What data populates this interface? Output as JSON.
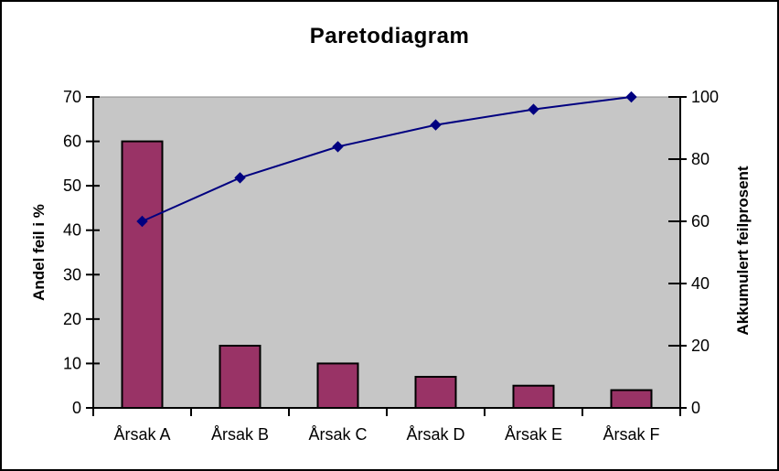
{
  "chart_data": {
    "type": "bar",
    "subtype": "pareto-combo",
    "title": "Paretodiagram",
    "categories": [
      "Årsak A",
      "Årsak B",
      "Årsak C",
      "Årsak D",
      "Årsak E",
      "Årsak F"
    ],
    "series": [
      {
        "name": "Andel feil i %",
        "render": "bar",
        "axis": "left",
        "values": [
          60,
          14,
          10,
          7,
          5,
          4
        ]
      },
      {
        "name": "Akkumulert feilprosent",
        "render": "line",
        "axis": "right",
        "values": [
          60,
          74,
          84,
          91,
          96,
          100
        ]
      }
    ],
    "left_axis": {
      "label": "Andel feil i %",
      "min": 0,
      "max": 70,
      "ticks": [
        0,
        10,
        20,
        30,
        40,
        50,
        60,
        70
      ]
    },
    "right_axis": {
      "label": "Akkumulert feilprosent",
      "min": 0,
      "max": 100,
      "ticks": [
        0,
        20,
        40,
        60,
        80,
        100
      ]
    },
    "legend": "none",
    "grid": "off",
    "colors": {
      "bar_fill": "#993366",
      "bar_border": "#000000",
      "line": "#000080",
      "marker": "#000080",
      "plot_bg": "#C6C6C6",
      "plot_border": "#8A8A8A",
      "axis": "#000000",
      "text": "#000000",
      "page_bg": "#FFFFFF",
      "frame_border": "#000000"
    }
  }
}
